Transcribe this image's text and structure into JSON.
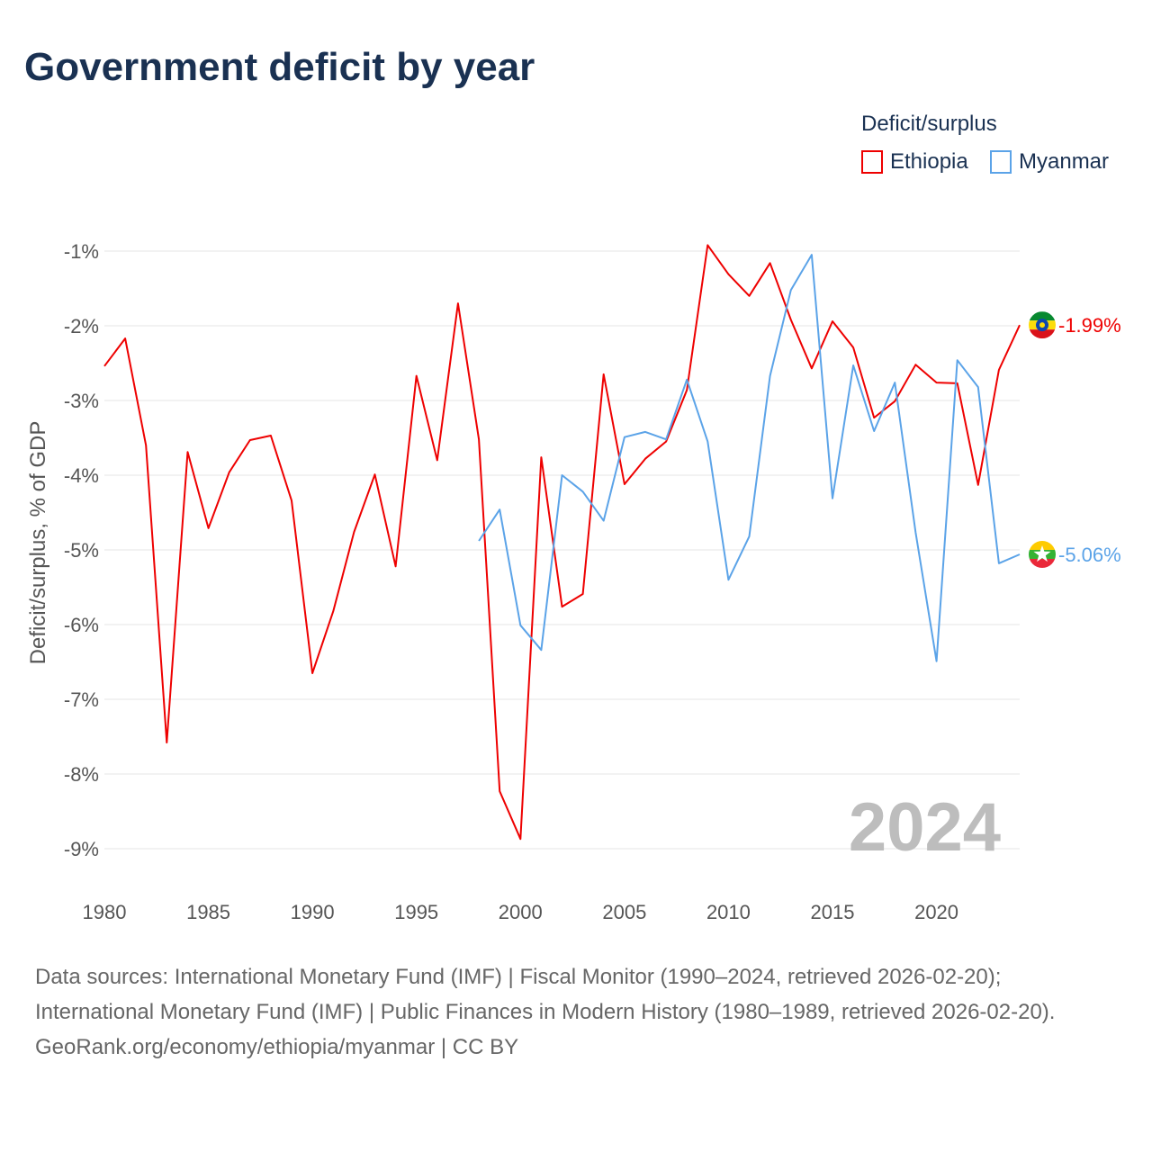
{
  "title": "Government deficit by year",
  "legend": {
    "title": "Deficit/surplus",
    "items": [
      "Ethiopia",
      "Myanmar"
    ]
  },
  "footer": {
    "sources": "Data sources: International Monetary Fund (IMF) | Fiscal Monitor (1990–2024, retrieved 2026-02-20); International Monetary Fund (IMF) | Public Finances in Modern History (1980–1989, retrieved 2026-02-20).",
    "credit": "GeoRank.org/economy/ethiopia/myanmar | CC BY"
  },
  "chart_data": {
    "type": "line",
    "title": "Government deficit by year",
    "xlabel": "",
    "ylabel": "Deficit/surplus, % of GDP",
    "xlim": [
      1980,
      2024
    ],
    "ylim": [
      -9.5,
      -0.8
    ],
    "x_ticks": [
      1980,
      1985,
      1990,
      1995,
      2000,
      2005,
      2010,
      2015,
      2020
    ],
    "x_tick_labels": [
      "1980",
      "1985",
      "1990",
      "1995",
      "2000",
      "2005",
      "2010",
      "2015",
      "2020"
    ],
    "y_ticks": [
      -1,
      -2,
      -3,
      -4,
      -5,
      -6,
      -7,
      -8,
      -9
    ],
    "y_tick_labels": [
      "-1%",
      "-2%",
      "-3%",
      "-4%",
      "-5%",
      "-6%",
      "-7%",
      "-8%",
      "-9%"
    ],
    "grid": true,
    "legend_position": "top-right",
    "watermark_year": "2024",
    "series": [
      {
        "name": "Ethiopia",
        "color": "#ee0000",
        "end_label": "-1.99%",
        "x": [
          1980,
          1981,
          1982,
          1983,
          1984,
          1985,
          1986,
          1987,
          1988,
          1989,
          1990,
          1991,
          1992,
          1993,
          1994,
          1995,
          1996,
          1997,
          1998,
          1999,
          2000,
          2001,
          2002,
          2003,
          2004,
          2005,
          2006,
          2007,
          2008,
          2009,
          2010,
          2011,
          2012,
          2013,
          2014,
          2015,
          2016,
          2017,
          2018,
          2019,
          2020,
          2021,
          2022,
          2023,
          2024
        ],
        "values": [
          -2.54,
          -2.17,
          -3.6,
          -7.58,
          -3.69,
          -4.71,
          -3.96,
          -3.53,
          -3.47,
          -4.34,
          -6.65,
          -5.82,
          -4.76,
          -3.99,
          -5.22,
          -2.67,
          -3.8,
          -1.7,
          -3.52,
          -8.23,
          -8.87,
          -3.76,
          -5.76,
          -5.59,
          -2.65,
          -4.12,
          -3.78,
          -3.55,
          -2.86,
          -0.92,
          -1.31,
          -1.6,
          -1.16,
          -1.92,
          -2.57,
          -1.94,
          -2.29,
          -3.23,
          -3.01,
          -2.52,
          -2.76,
          -2.77,
          -4.13,
          -2.59,
          -1.99
        ]
      },
      {
        "name": "Myanmar",
        "color": "#5ba3e8",
        "end_label": "-5.06%",
        "x": [
          1998,
          1999,
          2000,
          2001,
          2002,
          2003,
          2004,
          2005,
          2006,
          2007,
          2008,
          2009,
          2010,
          2011,
          2012,
          2013,
          2014,
          2015,
          2016,
          2017,
          2018,
          2019,
          2020,
          2021,
          2022,
          2023,
          2024
        ],
        "values": [
          -4.88,
          -4.46,
          -6.01,
          -6.34,
          -4.0,
          -4.22,
          -4.61,
          -3.49,
          -3.42,
          -3.52,
          -2.72,
          -3.55,
          -5.4,
          -4.82,
          -2.67,
          -1.52,
          -1.05,
          -4.31,
          -2.53,
          -3.41,
          -2.76,
          -4.77,
          -6.49,
          -2.46,
          -2.82,
          -5.18,
          -5.06
        ]
      }
    ]
  }
}
